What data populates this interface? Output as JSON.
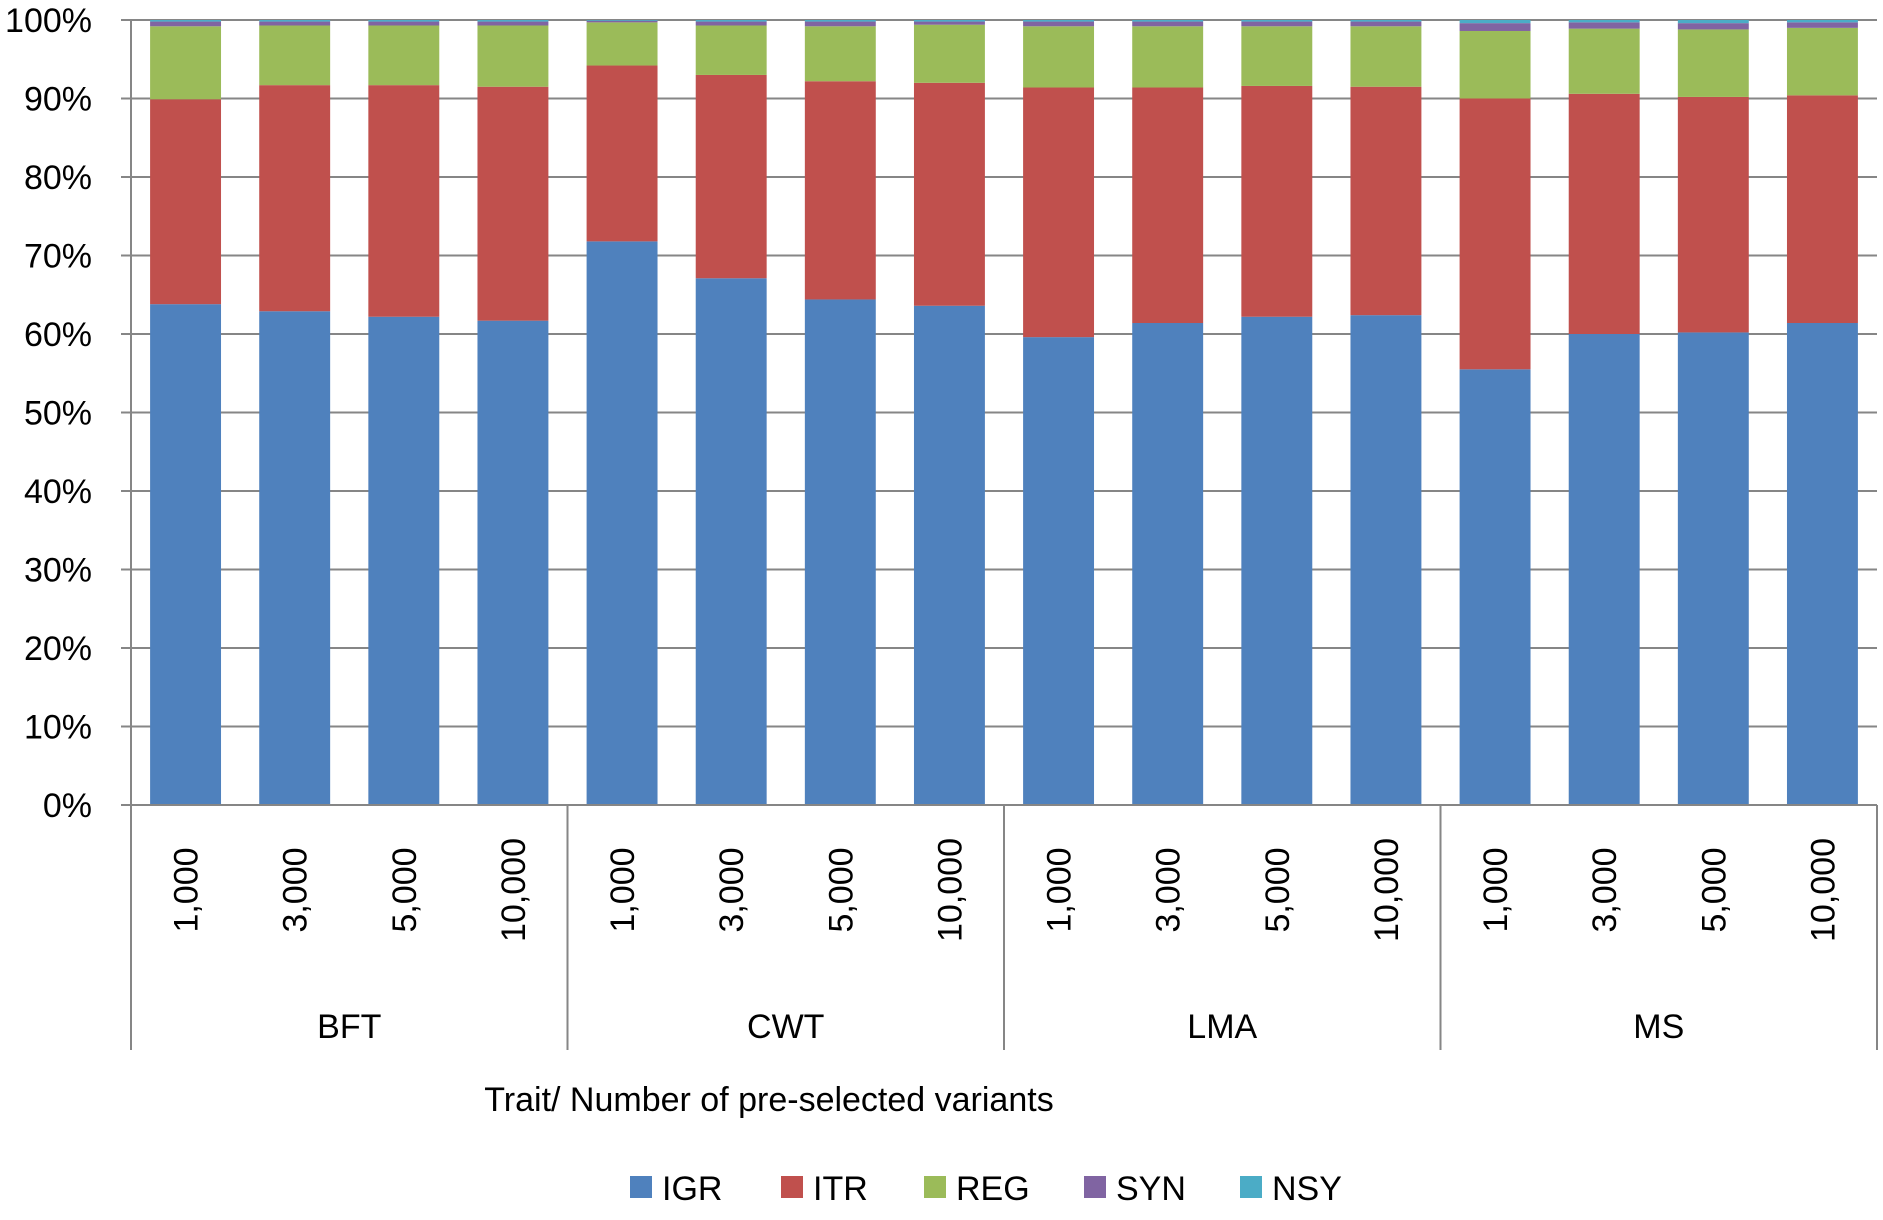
{
  "chart_data": {
    "type": "bar",
    "stacked": true,
    "percent": true,
    "title": "",
    "xlabel": "Trait/ Number of pre-selected variants",
    "ylabel": "",
    "ylim": [
      0,
      100
    ],
    "yticks": [
      "0%",
      "10%",
      "20%",
      "30%",
      "40%",
      "50%",
      "60%",
      "70%",
      "80%",
      "90%",
      "100%"
    ],
    "grid": true,
    "legend_position": "bottom",
    "groups": [
      {
        "label": "BFT",
        "categories": [
          "1,000",
          "3,000",
          "5,000",
          "10,000"
        ]
      },
      {
        "label": "CWT",
        "categories": [
          "1,000",
          "3,000",
          "5,000",
          "10,000"
        ]
      },
      {
        "label": "LMA",
        "categories": [
          "1,000",
          "3,000",
          "5,000",
          "10,000"
        ]
      },
      {
        "label": "MS",
        "categories": [
          "1,000",
          "3,000",
          "5,000",
          "10,000"
        ]
      }
    ],
    "series": [
      {
        "name": "IGR",
        "color": "#4F81BD",
        "values": [
          63.8,
          62.9,
          62.2,
          61.7,
          71.8,
          67.1,
          64.4,
          63.6,
          59.6,
          61.4,
          62.2,
          62.4,
          55.5,
          60.0,
          60.2,
          61.4
        ]
      },
      {
        "name": "ITR",
        "color": "#C0504D",
        "values": [
          26.1,
          28.8,
          29.5,
          29.8,
          22.4,
          25.9,
          27.8,
          28.4,
          31.8,
          30.0,
          29.4,
          29.1,
          34.5,
          30.6,
          30.0,
          29.0
        ]
      },
      {
        "name": "REG",
        "color": "#9BBB59",
        "values": [
          9.3,
          7.6,
          7.6,
          7.8,
          5.5,
          6.3,
          7.0,
          7.4,
          7.8,
          7.8,
          7.6,
          7.7,
          8.6,
          8.3,
          8.6,
          8.6
        ]
      },
      {
        "name": "SYN",
        "color": "#8064A2",
        "values": [
          0.6,
          0.5,
          0.5,
          0.5,
          0.2,
          0.5,
          0.6,
          0.4,
          0.6,
          0.6,
          0.6,
          0.6,
          1.0,
          0.8,
          0.8,
          0.7
        ]
      },
      {
        "name": "NSY",
        "color": "#4BACC6",
        "values": [
          0.2,
          0.2,
          0.2,
          0.2,
          0.1,
          0.2,
          0.2,
          0.2,
          0.2,
          0.2,
          0.2,
          0.2,
          0.4,
          0.3,
          0.4,
          0.3
        ]
      }
    ]
  }
}
